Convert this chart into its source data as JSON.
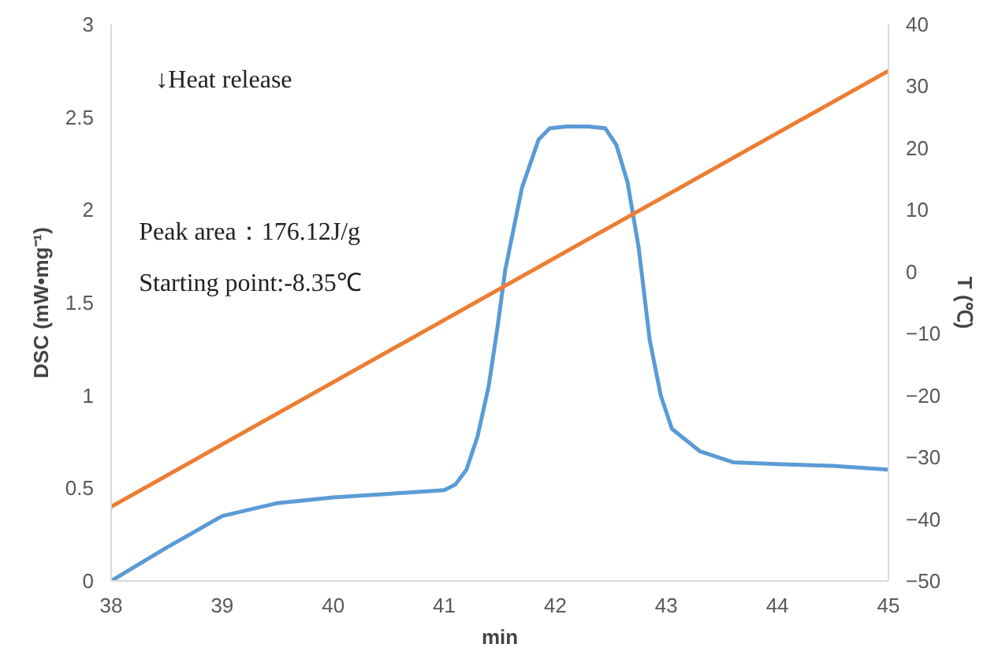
{
  "chart_data": {
    "type": "line",
    "xlabel": "min",
    "ylabel": "DSC (mW•mg⁻¹)",
    "y2label": "T (℃)",
    "xlim": [
      38,
      45
    ],
    "xticks": [
      38,
      39,
      40,
      41,
      42,
      43,
      44,
      45
    ],
    "ylim": [
      0,
      3
    ],
    "yticks": [
      0,
      0.5,
      1,
      1.5,
      2,
      2.5,
      3
    ],
    "y2lim": [
      -50,
      40
    ],
    "y2ticks": [
      -50,
      -40,
      -30,
      -20,
      -10,
      0,
      10,
      20,
      30,
      40
    ],
    "grid": false,
    "series": [
      {
        "color": "#5b9bd5",
        "x": [
          38,
          38.5,
          39,
          39.5,
          40,
          40.5,
          41,
          41.1,
          41.2,
          41.3,
          41.4,
          41.48,
          41.55,
          41.7,
          41.85,
          41.95,
          42.1,
          42.3,
          42.45,
          42.55,
          42.65,
          42.75,
          42.85,
          42.95,
          43.05,
          43.3,
          43.6,
          44,
          44.5,
          45
        ],
        "values": [
          0,
          0.18,
          0.35,
          0.42,
          0.45,
          0.47,
          0.49,
          0.52,
          0.6,
          0.78,
          1.05,
          1.37,
          1.68,
          2.12,
          2.38,
          2.44,
          2.45,
          2.45,
          2.44,
          2.35,
          2.15,
          1.8,
          1.3,
          1.0,
          0.82,
          0.7,
          0.64,
          0.63,
          0.62,
          0.6
        ]
      },
      {
        "color": "#ed7d31",
        "axis": "y2",
        "x": [
          38,
          45
        ],
        "values": [
          -38,
          32.5
        ]
      }
    ],
    "annotations": [
      "↓Heat release",
      "Peak area：176.12J/g",
      "Starting point:-8.35℃"
    ]
  }
}
